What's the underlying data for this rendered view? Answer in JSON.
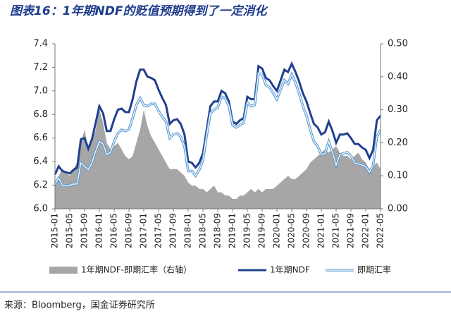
{
  "chart_data": {
    "type": "line",
    "title": "图表16：1年期NDF的贬值预期得到了一定消化",
    "source": "来源：Bloomberg，国金证券研究所",
    "categories": [
      "2015-01",
      null,
      null,
      null,
      "2015-05",
      null,
      null,
      null,
      "2015-09",
      null,
      null,
      null,
      "2016-01",
      null,
      null,
      null,
      "2016-05",
      null,
      null,
      null,
      "2016-09",
      null,
      null,
      null,
      "2017-01",
      null,
      null,
      null,
      "2017-05",
      null,
      null,
      null,
      "2017-09",
      null,
      null,
      null,
      "2018-01",
      null,
      null,
      null,
      "2018-05",
      null,
      null,
      null,
      "2018-09",
      null,
      null,
      null,
      "2019-01",
      null,
      null,
      null,
      "2019-05",
      null,
      null,
      null,
      "2019-09",
      null,
      null,
      null,
      "2020-01",
      null,
      null,
      null,
      "2020-05",
      null,
      null,
      null,
      "2020-09",
      null,
      null,
      null,
      "2021-01",
      null,
      null,
      null,
      "2021-05",
      null,
      null,
      null,
      "2021-09",
      null,
      null,
      null,
      "2022-01",
      null,
      null,
      null,
      "2022-05"
    ],
    "series": [
      {
        "name": "1年期NDF-即期汇率（右轴）",
        "color": "#a6a6a6",
        "axis": "y2",
        "kind": "area",
        "values": [
          0.08,
          0.1,
          0.12,
          0.11,
          0.1,
          0.12,
          0.14,
          0.2,
          0.24,
          0.18,
          0.2,
          0.24,
          0.3,
          0.26,
          0.2,
          0.18,
          0.19,
          0.2,
          0.18,
          0.16,
          0.15,
          0.16,
          0.2,
          0.24,
          0.3,
          0.25,
          0.22,
          0.2,
          0.18,
          0.16,
          0.14,
          0.12,
          0.12,
          0.12,
          0.11,
          0.1,
          0.08,
          0.07,
          0.07,
          0.06,
          0.06,
          0.05,
          0.06,
          0.07,
          0.05,
          0.05,
          0.04,
          0.04,
          0.03,
          0.03,
          0.04,
          0.04,
          0.05,
          0.06,
          0.05,
          0.06,
          0.05,
          0.06,
          0.06,
          0.06,
          0.07,
          0.08,
          0.09,
          0.1,
          0.09,
          0.09,
          0.1,
          0.11,
          0.12,
          0.14,
          0.15,
          0.16,
          0.17,
          0.18,
          0.17,
          0.18,
          0.19,
          0.17,
          0.16,
          0.16,
          0.15,
          0.16,
          0.17,
          0.15,
          0.14,
          0.12,
          0.13,
          0.14,
          0.12
        ]
      },
      {
        "name": "1年期NDF",
        "color": "#203f8f",
        "kind": "line",
        "values": [
          6.29,
          6.36,
          6.32,
          6.31,
          6.3,
          6.33,
          6.35,
          6.59,
          6.6,
          6.51,
          6.59,
          6.73,
          6.87,
          6.81,
          6.66,
          6.66,
          6.76,
          6.84,
          6.85,
          6.82,
          6.82,
          6.93,
          7.08,
          7.18,
          7.18,
          7.12,
          7.11,
          7.09,
          7.01,
          6.94,
          6.88,
          6.72,
          6.75,
          6.76,
          6.72,
          6.63,
          6.4,
          6.39,
          6.35,
          6.39,
          6.47,
          6.67,
          6.87,
          6.91,
          6.91,
          7.0,
          6.98,
          6.91,
          6.74,
          6.72,
          6.75,
          6.77,
          6.95,
          6.93,
          6.93,
          7.21,
          7.19,
          7.11,
          7.09,
          7.04,
          7.0,
          7.09,
          7.18,
          7.16,
          7.23,
          7.16,
          7.08,
          6.98,
          6.91,
          6.81,
          6.72,
          6.69,
          6.63,
          6.65,
          6.74,
          6.66,
          6.56,
          6.63,
          6.63,
          6.64,
          6.6,
          6.55,
          6.55,
          6.52,
          6.5,
          6.43,
          6.5,
          6.75,
          6.79
        ]
      },
      {
        "name": "即期汇率",
        "color": "#5b9bd5",
        "kind": "double",
        "values": [
          6.21,
          6.26,
          6.2,
          6.2,
          6.2,
          6.21,
          6.21,
          6.39,
          6.36,
          6.33,
          6.39,
          6.49,
          6.57,
          6.55,
          6.46,
          6.48,
          6.57,
          6.64,
          6.67,
          6.66,
          6.67,
          6.77,
          6.88,
          6.94,
          6.88,
          6.87,
          6.89,
          6.89,
          6.83,
          6.78,
          6.74,
          6.6,
          6.63,
          6.64,
          6.61,
          6.53,
          6.32,
          6.32,
          6.28,
          6.33,
          6.41,
          6.62,
          6.81,
          6.84,
          6.86,
          6.95,
          6.94,
          6.87,
          6.71,
          6.69,
          6.71,
          6.73,
          6.9,
          6.87,
          6.88,
          7.15,
          7.14,
          7.05,
          7.03,
          6.98,
          6.93,
          7.01,
          7.09,
          7.06,
          7.14,
          7.07,
          6.98,
          6.87,
          6.79,
          6.67,
          6.57,
          6.53,
          6.46,
          6.47,
          6.57,
          6.48,
          6.37,
          6.46,
          6.47,
          6.48,
          6.45,
          6.39,
          6.38,
          6.37,
          6.36,
          6.31,
          6.37,
          6.61,
          6.67
        ]
      }
    ],
    "ylim": [
      6.0,
      7.4
    ],
    "yticks": [
      {
        "value": 6.0,
        "label": "6.0"
      },
      6.2,
      6.4,
      6.6,
      6.8,
      {
        "value": 7.0,
        "label": "7.0"
      },
      7.2,
      7.4
    ],
    "y2lim": [
      0,
      0.5
    ],
    "y2ticks": [
      {
        "value": 0,
        "label": "0.00"
      },
      {
        "value": 0.1,
        "label": "0.10"
      },
      {
        "value": 0.2,
        "label": "0.20"
      },
      {
        "value": 0.3,
        "label": "0.30"
      },
      {
        "value": 0.4,
        "label": "0.40"
      },
      {
        "value": 0.5,
        "label": "0.50"
      }
    ],
    "grid": false,
    "legend": "bottom"
  }
}
